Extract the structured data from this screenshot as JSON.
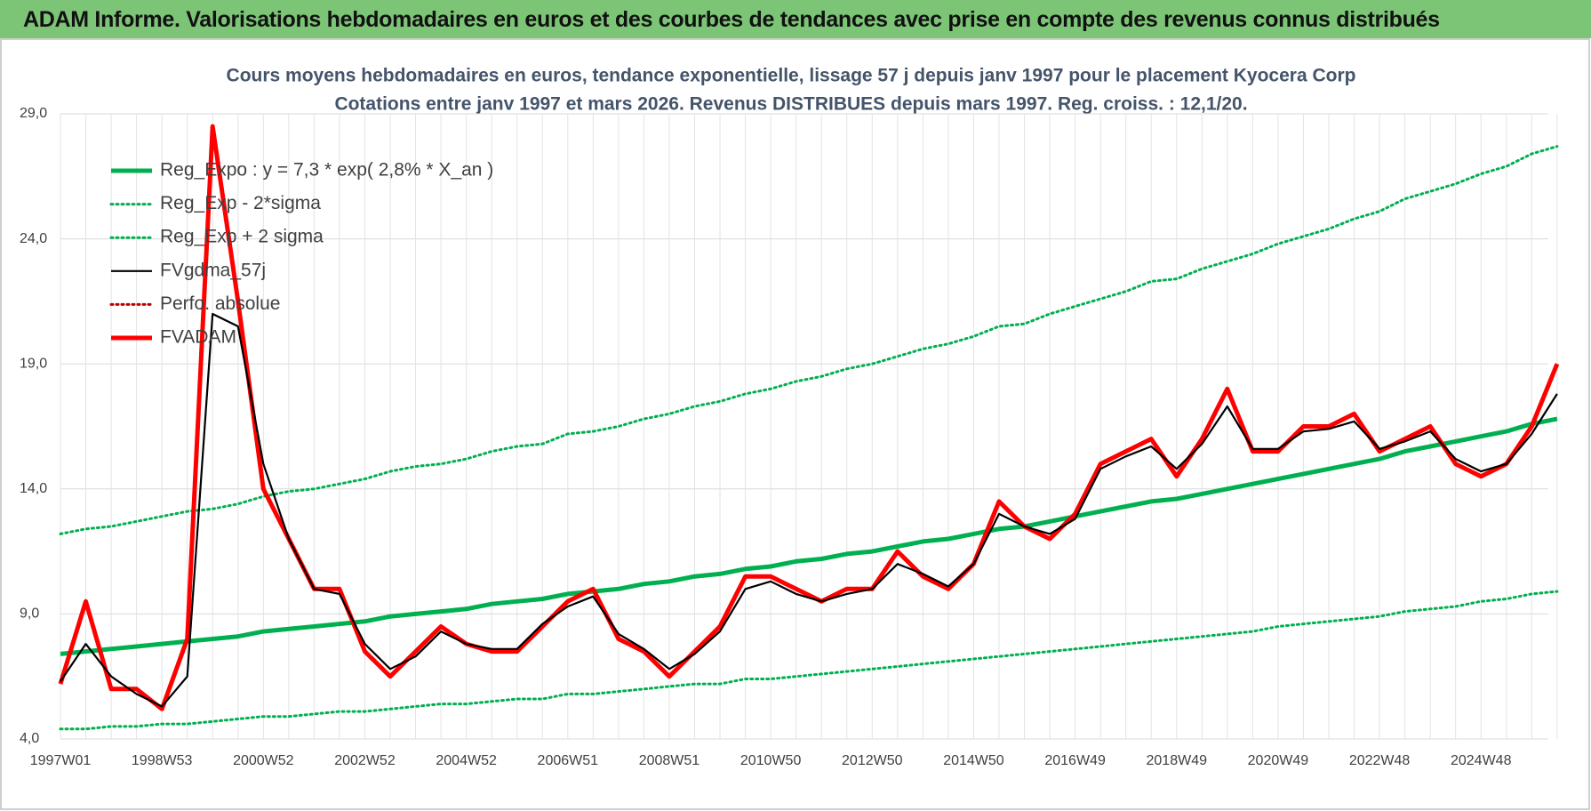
{
  "header": {
    "title": "ADAM Informe. Valorisations hebdomadaires en euros et des courbes de tendances avec prise en compte des revenus connus distribués"
  },
  "chart_data": {
    "type": "line",
    "title": "Cours moyens hebdomadaires en euros, tendance exponentielle, lissage 57 j depuis janv 1997 pour le placement Kyocera Corp",
    "subtitle": "Cotations entre janv 1997 et mars 2026. Revenus DISTRIBUES depuis mars 1997. Reg. croiss. : 12,1/20.",
    "categories": [
      "1997W01",
      null,
      null,
      null,
      "1998W53",
      null,
      null,
      null,
      "2000W52",
      null,
      null,
      null,
      "2002W52",
      null,
      null,
      null,
      "2004W52",
      null,
      null,
      null,
      "2006W51",
      null,
      null,
      null,
      "2008W51",
      null,
      null,
      null,
      "2010W50",
      null,
      null,
      null,
      "2012W50",
      null,
      null,
      null,
      "2014W50",
      null,
      null,
      null,
      "2016W49",
      null,
      null,
      null,
      "2018W49",
      null,
      null,
      null,
      "2020W49",
      null,
      null,
      null,
      "2022W48",
      null,
      null,
      null,
      "2024W48",
      null,
      null,
      null
    ],
    "ylim": [
      4,
      29
    ],
    "yticks": [
      {
        "value": 4,
        "label": "4,0"
      },
      {
        "value": 9,
        "label": "9,0"
      },
      {
        "value": 14,
        "label": "14,0"
      },
      {
        "value": 19,
        "label": "19,0"
      },
      {
        "value": 24,
        "label": "24,0"
      },
      {
        "value": 29,
        "label": "29,0"
      }
    ],
    "grid": true,
    "legend": "top-left",
    "series": [
      {
        "name": "Reg_Expo : y = 7,3 * exp( 2,8% *  X_an )",
        "color": "#00b050",
        "style": "thick",
        "values": [
          7.4,
          7.5,
          7.6,
          7.7,
          7.8,
          7.9,
          8.0,
          8.1,
          8.3,
          8.4,
          8.5,
          8.6,
          8.7,
          8.9,
          9.0,
          9.1,
          9.2,
          9.4,
          9.5,
          9.6,
          9.8,
          9.9,
          10.0,
          10.2,
          10.3,
          10.5,
          10.6,
          10.8,
          10.9,
          11.1,
          11.2,
          11.4,
          11.5,
          11.7,
          11.9,
          12.0,
          12.2,
          12.4,
          12.5,
          12.7,
          12.9,
          13.1,
          13.3,
          13.5,
          13.6,
          13.8,
          14.0,
          14.2,
          14.4,
          14.6,
          14.8,
          15.0,
          15.2,
          15.5,
          15.7,
          15.9,
          16.1,
          16.3,
          16.6,
          16.8
        ]
      },
      {
        "name": "Reg_Exp - 2*sigma",
        "color": "#00b050",
        "style": "dotted",
        "values": [
          4.4,
          4.4,
          4.5,
          4.5,
          4.6,
          4.6,
          4.7,
          4.8,
          4.9,
          4.9,
          5.0,
          5.1,
          5.1,
          5.2,
          5.3,
          5.4,
          5.4,
          5.5,
          5.6,
          5.6,
          5.8,
          5.8,
          5.9,
          6.0,
          6.1,
          6.2,
          6.2,
          6.4,
          6.4,
          6.5,
          6.6,
          6.7,
          6.8,
          6.9,
          7.0,
          7.1,
          7.2,
          7.3,
          7.4,
          7.5,
          7.6,
          7.7,
          7.8,
          7.9,
          8.0,
          8.1,
          8.2,
          8.3,
          8.5,
          8.6,
          8.7,
          8.8,
          8.9,
          9.1,
          9.2,
          9.3,
          9.5,
          9.6,
          9.8,
          9.9
        ]
      },
      {
        "name": "Reg_Exp + 2 sigma",
        "color": "#00b050",
        "style": "dotted",
        "values": [
          12.2,
          12.4,
          12.5,
          12.7,
          12.9,
          13.1,
          13.2,
          13.4,
          13.7,
          13.9,
          14.0,
          14.2,
          14.4,
          14.7,
          14.9,
          15.0,
          15.2,
          15.5,
          15.7,
          15.8,
          16.2,
          16.3,
          16.5,
          16.8,
          17.0,
          17.3,
          17.5,
          17.8,
          18.0,
          18.3,
          18.5,
          18.8,
          19.0,
          19.3,
          19.6,
          19.8,
          20.1,
          20.5,
          20.6,
          21.0,
          21.3,
          21.6,
          21.9,
          22.3,
          22.4,
          22.8,
          23.1,
          23.4,
          23.8,
          24.1,
          24.4,
          24.8,
          25.1,
          25.6,
          25.9,
          26.2,
          26.6,
          26.9,
          27.4,
          27.7
        ]
      },
      {
        "name": "FVgdma_57j",
        "color": "#000000",
        "style": "thin",
        "values": [
          6.3,
          7.8,
          6.5,
          5.8,
          5.3,
          6.5,
          21.0,
          20.5,
          15.0,
          12.0,
          10.0,
          9.8,
          7.8,
          6.8,
          7.3,
          8.3,
          7.8,
          7.6,
          7.6,
          8.6,
          9.3,
          9.7,
          8.2,
          7.6,
          6.8,
          7.4,
          8.3,
          10.0,
          10.3,
          9.8,
          9.5,
          9.8,
          10.0,
          11.0,
          10.6,
          10.1,
          11.0,
          13.0,
          12.5,
          12.2,
          12.8,
          14.8,
          15.3,
          15.7,
          14.8,
          15.8,
          17.3,
          15.6,
          15.6,
          16.3,
          16.4,
          16.7,
          15.6,
          15.9,
          16.3,
          15.2,
          14.7,
          15.0,
          16.2,
          17.8
        ]
      },
      {
        "name": "Perfo. absolue",
        "color": "#c00000",
        "style": "dotted",
        "values": [
          null,
          null,
          null,
          null,
          null,
          null,
          null,
          null,
          null,
          null,
          null,
          null,
          null,
          null,
          null,
          null,
          null,
          null,
          null,
          null,
          null,
          null,
          null,
          null,
          null,
          null,
          null,
          null,
          null,
          null,
          null,
          null,
          null,
          null,
          null,
          null,
          null,
          null,
          null,
          null,
          null,
          null,
          null,
          null,
          null,
          null,
          null,
          null,
          null,
          null,
          null,
          null,
          null,
          null,
          null,
          null,
          null,
          null,
          null,
          null
        ]
      },
      {
        "name": "FVADAM",
        "color": "#ff0000",
        "style": "thick",
        "values": [
          6.2,
          9.5,
          6.0,
          6.0,
          5.2,
          8.0,
          28.5,
          21.5,
          14.0,
          12.0,
          10.0,
          10.0,
          7.5,
          6.5,
          7.5,
          8.5,
          7.8,
          7.5,
          7.5,
          8.5,
          9.5,
          10.0,
          8.0,
          7.5,
          6.5,
          7.5,
          8.5,
          10.5,
          10.5,
          10.0,
          9.5,
          10.0,
          10.0,
          11.5,
          10.5,
          10.0,
          11.0,
          13.5,
          12.5,
          12.0,
          13.0,
          15.0,
          15.5,
          16.0,
          14.5,
          16.0,
          18.0,
          15.5,
          15.5,
          16.5,
          16.5,
          17.0,
          15.5,
          16.0,
          16.5,
          15.0,
          14.5,
          15.0,
          16.5,
          19.0
        ]
      }
    ]
  }
}
